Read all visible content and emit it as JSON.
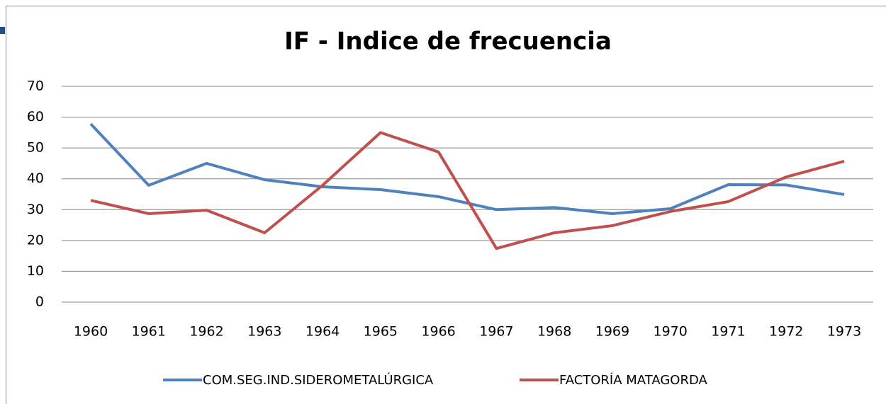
{
  "chart_data": {
    "type": "line",
    "title": "IF - Indice de frecuencia",
    "categories": [
      "1960",
      "1961",
      "1962",
      "1963",
      "1964",
      "1965",
      "1966",
      "1967",
      "1968",
      "1969",
      "1970",
      "1971",
      "1972",
      "1973"
    ],
    "series": [
      {
        "name": "COM.SEG.IND.SIDEROMETALÚRGICA",
        "color": "#4f81bd",
        "values": [
          57.8,
          37.9,
          45,
          39.7,
          37.4,
          36.5,
          34.2,
          30,
          30.7,
          28.7,
          30.3,
          38.1,
          38,
          34.9
        ]
      },
      {
        "name": "FACTORÍA MATAGORDA",
        "color": "#c0504d",
        "values": [
          33,
          28.7,
          29.8,
          22.5,
          37.9,
          55,
          48.7,
          17.4,
          22.5,
          24.8,
          29.4,
          32.6,
          40.6,
          45.7
        ]
      }
    ],
    "ylim": [
      0,
      70
    ],
    "yticks": [
      0,
      10,
      20,
      30,
      40,
      50,
      60,
      70
    ],
    "grid": true,
    "legend": "bottom"
  }
}
